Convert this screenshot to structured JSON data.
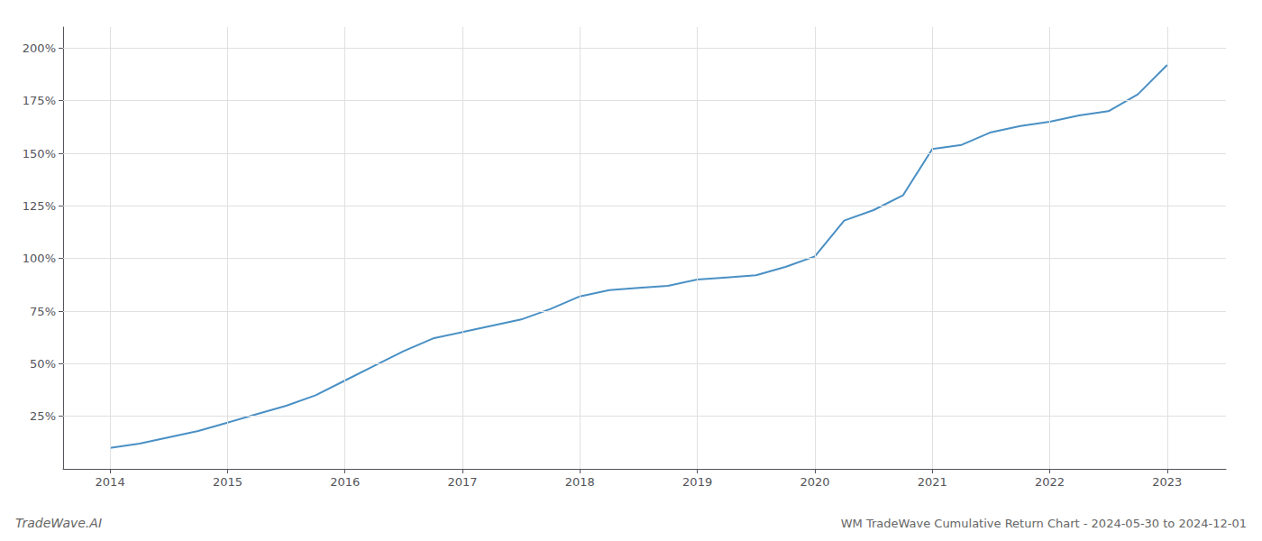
{
  "chart_data": {
    "type": "line",
    "title": "WM TradeWave Cumulative Return Chart - 2024-05-30 to 2024-12-01",
    "annotations": [
      "TradeWave.AI"
    ],
    "color": "#4a90c4",
    "x": [
      2014.0,
      2014.25,
      2014.5,
      2014.75,
      2015.0,
      2015.25,
      2015.5,
      2015.75,
      2016.0,
      2016.25,
      2016.5,
      2016.75,
      2017.0,
      2017.25,
      2017.5,
      2017.75,
      2018.0,
      2018.25,
      2018.5,
      2018.75,
      2019.0,
      2019.25,
      2019.5,
      2019.75,
      2020.0,
      2020.25,
      2020.5,
      2020.75,
      2021.0,
      2021.25,
      2021.5,
      2021.75,
      2022.0,
      2022.25,
      2022.5,
      2022.75,
      2023.0
    ],
    "values": [
      10,
      12,
      15,
      18,
      22,
      26,
      30,
      35,
      42,
      49,
      56,
      62,
      65,
      68,
      71,
      76,
      82,
      85,
      86,
      87,
      90,
      91,
      92,
      96,
      101,
      118,
      123,
      130,
      152,
      154,
      160,
      163,
      165,
      168,
      170,
      178,
      192
    ],
    "xlim": [
      2013.6,
      2023.5
    ],
    "xticks": [
      2014,
      2015,
      2016,
      2017,
      2018,
      2019,
      2020,
      2021,
      2022,
      2023
    ],
    "ylim": [
      0,
      210
    ],
    "yticks": [
      {
        "value": 25,
        "label": "25%"
      },
      {
        "value": 50,
        "label": "50%"
      },
      {
        "value": 75,
        "label": "75%"
      },
      {
        "value": 100,
        "label": "100%"
      },
      {
        "value": 125,
        "label": "125%"
      },
      {
        "value": 150,
        "label": "150%"
      },
      {
        "value": 175,
        "label": "175%"
      },
      {
        "value": 200,
        "label": "200%"
      }
    ],
    "grid": true
  }
}
